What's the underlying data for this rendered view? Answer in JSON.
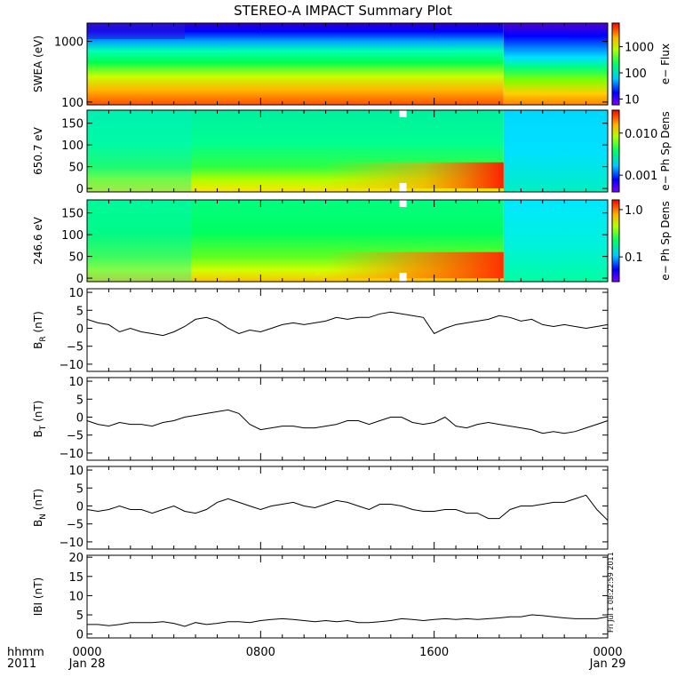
{
  "title": "STEREO-A IMPACT Summary Plot",
  "colors": {
    "axis": "#000000",
    "background": "#ffffff",
    "trace": "#000000",
    "gap": "#ffffff"
  },
  "x_axis": {
    "ticks": [
      {
        "time": "0000",
        "date": "Jan 28"
      },
      {
        "time": "0800",
        "date": ""
      },
      {
        "time": "1600",
        "date": ""
      },
      {
        "time": "0000",
        "date": "Jan 29"
      }
    ],
    "hour_range": [
      0,
      24
    ],
    "corner_top": "hhmm",
    "corner_bottom": "2011"
  },
  "timestamp": "Fri Jul 1 08:22:59 2011",
  "chart_data": [
    {
      "type": "heatmap",
      "ylabel": "SWEA (eV)",
      "ylim": [
        90,
        2000
      ],
      "yscale": "log",
      "yticks": [
        "1000",
        "100"
      ],
      "ytick_values": [
        1000,
        100
      ],
      "colorbar": {
        "label": "e− Flux",
        "ticks": [
          "1000",
          "100",
          "10"
        ],
        "tick_values": [
          1000,
          100,
          10
        ],
        "range": [
          6,
          8000
        ],
        "scale": "log"
      },
      "description": "energy spectrogram, high flux (red) at low energy, low (blue) at high energy; bands shift lower after ~1900"
    },
    {
      "type": "heatmap",
      "ylabel": "650.7 eV",
      "ylim": [
        -8,
        180
      ],
      "yticks": [
        "150",
        "100",
        "50",
        "0"
      ],
      "ytick_values": [
        150,
        100,
        50,
        0
      ],
      "colorbar": {
        "label": "e− Ph Sp Dens",
        "ticks": [
          "0.010",
          "0.001"
        ],
        "tick_values": [
          0.01,
          0.001
        ],
        "range": [
          0.0004,
          0.035
        ],
        "scale": "log"
      },
      "gap_hour": 14.4
    },
    {
      "type": "heatmap",
      "ylabel": "246.6 eV",
      "ylim": [
        -8,
        180
      ],
      "yticks": [
        "150",
        "100",
        "50",
        "0"
      ],
      "ytick_values": [
        150,
        100,
        50,
        0
      ],
      "colorbar": {
        "label": "e− Ph Sp Dens",
        "ticks": [
          "1.0",
          "0.1"
        ],
        "tick_values": [
          1.0,
          0.1
        ],
        "range": [
          0.03,
          1.6
        ],
        "scale": "log"
      },
      "gap_hour": 14.4
    },
    {
      "type": "line",
      "ylabel_main": "B",
      "ylabel_sub": "R",
      "ylabel_unit": " (nT)",
      "ylim": [
        -12,
        11
      ],
      "yticks": [
        "10",
        "5",
        "0",
        "−5",
        "−10"
      ],
      "ytick_values": [
        10,
        5,
        0,
        -5,
        -10
      ],
      "x": [
        0,
        0.5,
        1,
        1.5,
        2,
        2.5,
        3,
        3.5,
        4,
        4.5,
        5,
        5.5,
        6,
        6.5,
        7,
        7.5,
        8,
        8.5,
        9,
        9.5,
        10,
        10.5,
        11,
        11.5,
        12,
        12.5,
        13,
        13.5,
        14,
        14.5,
        15,
        15.5,
        16,
        16.5,
        17,
        17.5,
        18,
        18.5,
        19,
        19.5,
        20,
        20.5,
        21,
        21.5,
        22,
        22.5,
        23,
        23.5,
        24
      ],
      "values": [
        2.5,
        1.5,
        1,
        -1,
        0,
        -1,
        -1.5,
        -2,
        -1,
        0.5,
        2.5,
        3,
        2,
        0,
        -1.5,
        -0.5,
        -1,
        0,
        1,
        1.5,
        1,
        1.5,
        2,
        3,
        2.5,
        3,
        3,
        4,
        4.5,
        4,
        3.5,
        3,
        -1.5,
        0,
        1,
        1.5,
        2,
        2.5,
        3.5,
        3,
        2,
        2.5,
        1,
        0.5,
        1,
        0.5,
        0,
        0.5,
        1
      ]
    },
    {
      "type": "line",
      "ylabel_main": "B",
      "ylabel_sub": "T",
      "ylabel_unit": " (nT)",
      "ylim": [
        -12,
        11
      ],
      "yticks": [
        "10",
        "5",
        "0",
        "−5",
        "−10"
      ],
      "ytick_values": [
        10,
        5,
        0,
        -5,
        -10
      ],
      "x": [
        0,
        0.5,
        1,
        1.5,
        2,
        2.5,
        3,
        3.5,
        4,
        4.5,
        5,
        5.5,
        6,
        6.5,
        7,
        7.5,
        8,
        8.5,
        9,
        9.5,
        10,
        10.5,
        11,
        11.5,
        12,
        12.5,
        13,
        13.5,
        14,
        14.5,
        15,
        15.5,
        16,
        16.5,
        17,
        17.5,
        18,
        18.5,
        19,
        19.5,
        20,
        20.5,
        21,
        21.5,
        22,
        22.5,
        23,
        23.5,
        24
      ],
      "values": [
        -1,
        -2,
        -2.5,
        -1.5,
        -2,
        -2,
        -2.5,
        -1.5,
        -1,
        0,
        0.5,
        1,
        1.5,
        2,
        1,
        -2,
        -3.5,
        -3,
        -2.5,
        -2.5,
        -3,
        -3,
        -2.5,
        -2,
        -1,
        -1,
        -2,
        -1,
        0,
        0,
        -1.5,
        -2,
        -1.5,
        0,
        -2.5,
        -3,
        -2,
        -1.5,
        -2,
        -2.5,
        -3,
        -3.5,
        -4.5,
        -4,
        -4.5,
        -4,
        -3,
        -2,
        -1
      ]
    },
    {
      "type": "line",
      "ylabel_main": "B",
      "ylabel_sub": "N",
      "ylabel_unit": " (nT)",
      "ylim": [
        -12,
        11
      ],
      "yticks": [
        "10",
        "5",
        "0",
        "−5",
        "−10"
      ],
      "ytick_values": [
        10,
        5,
        0,
        -5,
        -10
      ],
      "x": [
        0,
        0.5,
        1,
        1.5,
        2,
        2.5,
        3,
        3.5,
        4,
        4.5,
        5,
        5.5,
        6,
        6.5,
        7,
        7.5,
        8,
        8.5,
        9,
        9.5,
        10,
        10.5,
        11,
        11.5,
        12,
        12.5,
        13,
        13.5,
        14,
        14.5,
        15,
        15.5,
        16,
        16.5,
        17,
        17.5,
        18,
        18.5,
        19,
        19.5,
        20,
        20.5,
        21,
        21.5,
        22,
        22.5,
        23,
        23.5,
        24
      ],
      "values": [
        -1,
        -1.5,
        -1,
        0,
        -1,
        -1,
        -2,
        -1,
        0,
        -1.5,
        -2,
        -1,
        1,
        2,
        1,
        0,
        -1,
        0,
        0.5,
        1,
        0,
        -0.5,
        0.5,
        1.5,
        1,
        0,
        -1,
        0.5,
        0.5,
        0,
        -1,
        -1.5,
        -1.5,
        -1,
        -1,
        -2,
        -2,
        -3.5,
        -3.5,
        -1,
        0,
        0,
        0.5,
        1,
        1,
        2,
        3,
        -1,
        -4
      ]
    },
    {
      "type": "line",
      "ylabel_main": "IBI",
      "ylabel_sub": "",
      "ylabel_unit": " (nT)",
      "ylim": [
        -1,
        20.5
      ],
      "yticks": [
        "20",
        "15",
        "10",
        "5",
        "0"
      ],
      "ytick_values": [
        20,
        15,
        10,
        5,
        0
      ],
      "x": [
        0,
        0.5,
        1,
        1.5,
        2,
        2.5,
        3,
        3.5,
        4,
        4.5,
        5,
        5.5,
        6,
        6.5,
        7,
        7.5,
        8,
        8.5,
        9,
        9.5,
        10,
        10.5,
        11,
        11.5,
        12,
        12.5,
        13,
        13.5,
        14,
        14.5,
        15,
        15.5,
        16,
        16.5,
        17,
        17.5,
        18,
        18.5,
        19,
        19.5,
        20,
        20.5,
        21,
        21.5,
        22,
        22.5,
        23,
        23.5,
        24
      ],
      "values": [
        2.5,
        2.5,
        2.2,
        2.5,
        3,
        3,
        3,
        3.2,
        2.8,
        2,
        3,
        2.5,
        2.8,
        3.2,
        3.2,
        3,
        3.5,
        3.8,
        4,
        3.8,
        3.5,
        3.2,
        3.5,
        3.2,
        3.5,
        3,
        3,
        3.2,
        3.5,
        4,
        3.8,
        3.5,
        3.8,
        4,
        3.8,
        4,
        3.8,
        4,
        4.2,
        4.5,
        4.5,
        5,
        4.8,
        4.5,
        4.2,
        4,
        4,
        4,
        4.5
      ]
    }
  ]
}
